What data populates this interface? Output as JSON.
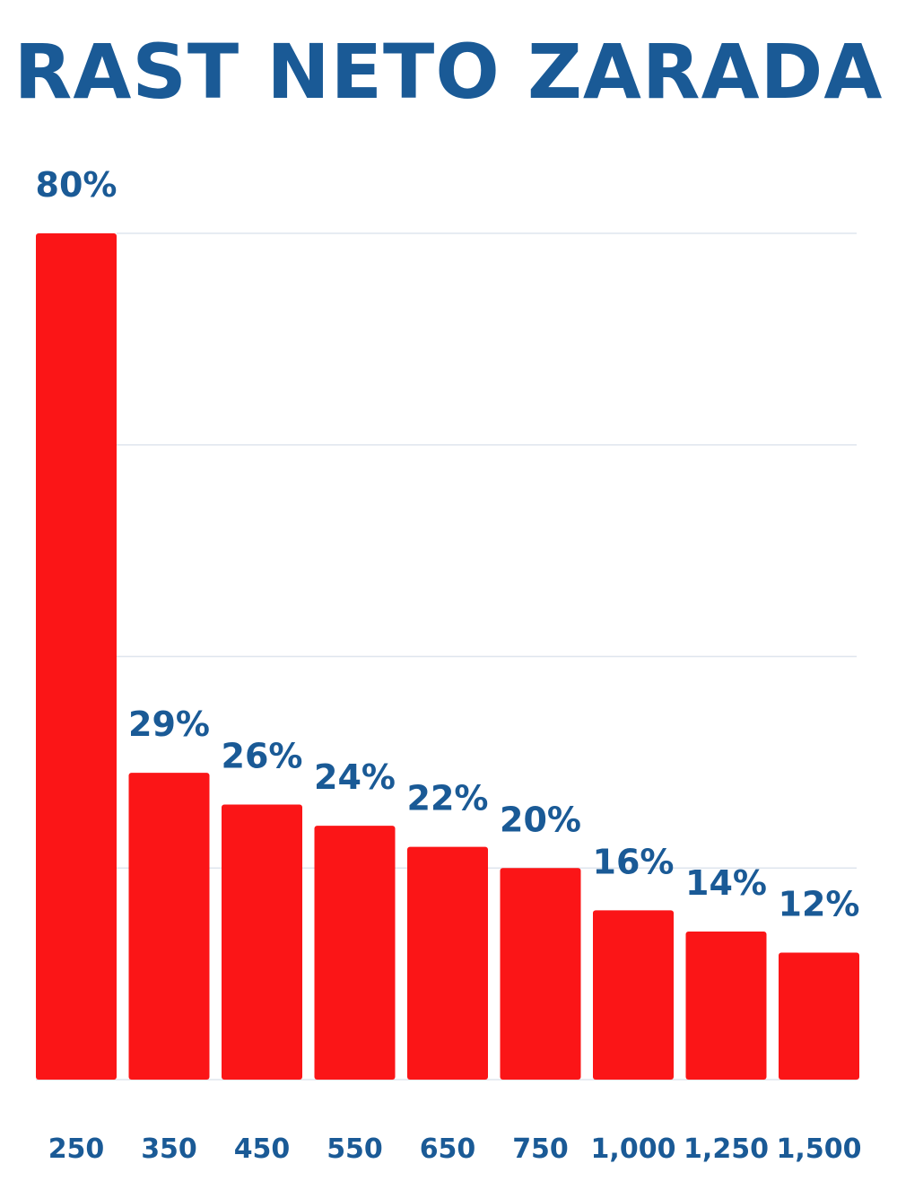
{
  "chart_data": {
    "type": "bar",
    "title": "RAST NETO ZARADA",
    "categories": [
      "250",
      "350",
      "450",
      "550",
      "650",
      "750",
      "1,000",
      "1,250",
      "1,500"
    ],
    "values": [
      80,
      29,
      26,
      24,
      22,
      20,
      16,
      14,
      12
    ],
    "value_labels": [
      "80%",
      "29%",
      "26%",
      "24%",
      "22%",
      "20%",
      "16%",
      "14%",
      "12%"
    ],
    "xlabel": "",
    "ylabel": "",
    "ylim": [
      0,
      80
    ],
    "gridlines": [
      20,
      40,
      60,
      80
    ],
    "grid": true,
    "legend": "none",
    "colors": {
      "bar": "#fb1517",
      "text": "#1a5a96",
      "grid": "#dfe5ee"
    }
  }
}
